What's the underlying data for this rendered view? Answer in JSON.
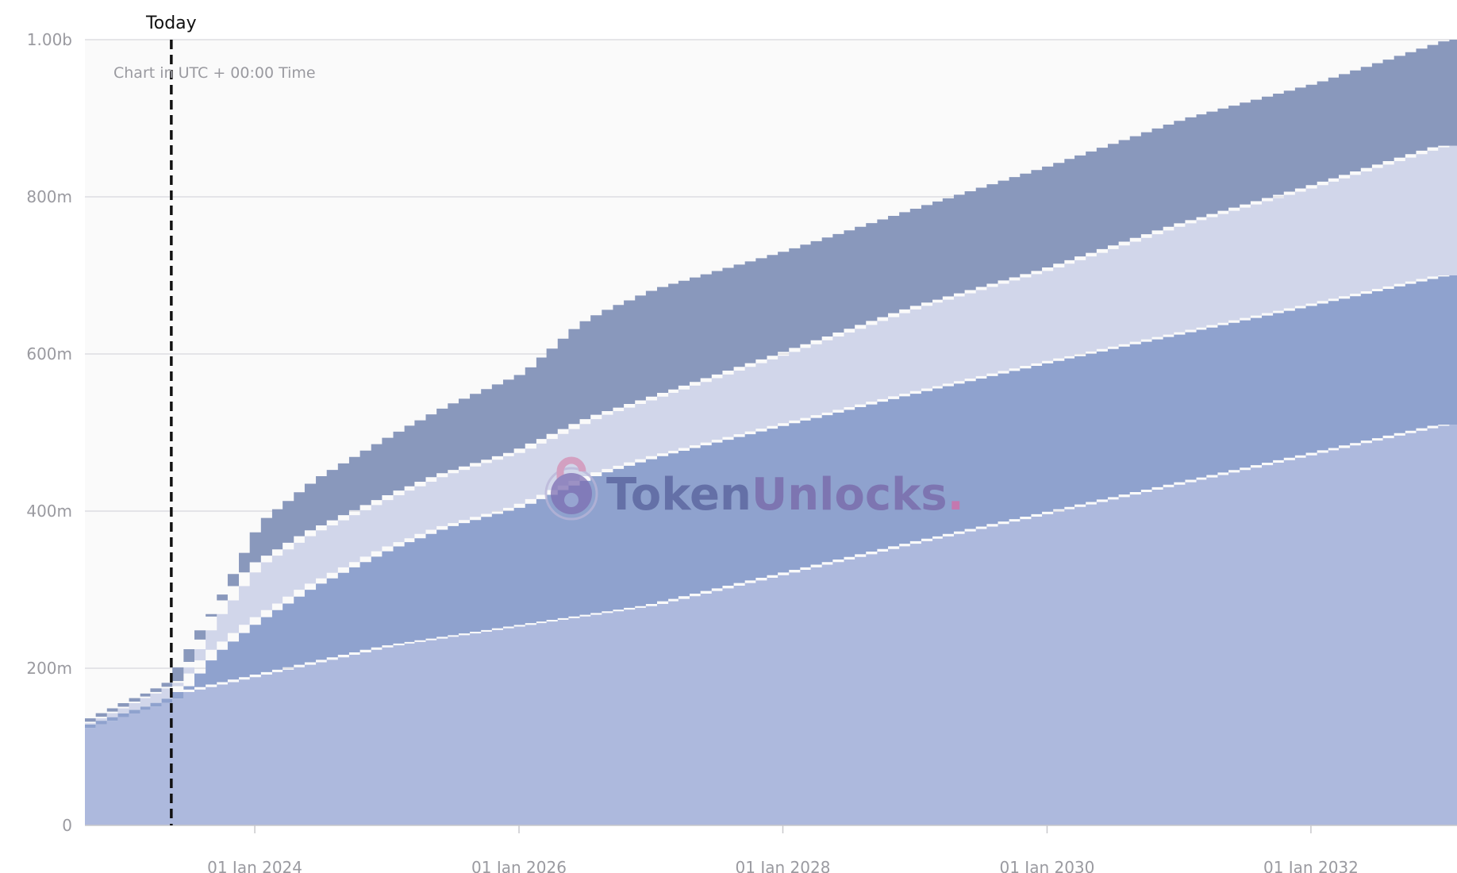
{
  "chart_data": {
    "type": "area",
    "stacked": true,
    "stepped": true,
    "note": "Chart in UTC + 00:00 Time",
    "today_label": "Today",
    "today_date": "2023-05-15",
    "xlim": [
      "2022-09-18",
      "2033-04-15"
    ],
    "ylim": [
      0,
      1000000000
    ],
    "yticks": [
      {
        "value": 0,
        "label": "0"
      },
      {
        "value": 200000000,
        "label": "200m"
      },
      {
        "value": 400000000,
        "label": "400m"
      },
      {
        "value": 600000000,
        "label": "600m"
      },
      {
        "value": 800000000,
        "label": "800m"
      },
      {
        "value": 1000000000,
        "label": "1.00b"
      }
    ],
    "xticks": [
      {
        "value": "2024-01-01",
        "label": "01 Jan 2024"
      },
      {
        "value": "2026-01-01",
        "label": "01 Jan 2026"
      },
      {
        "value": "2028-01-01",
        "label": "01 Jan 2028"
      },
      {
        "value": "2030-01-01",
        "label": "01 Jan 2030"
      },
      {
        "value": "2032-01-01",
        "label": "01 Jan 2032"
      }
    ],
    "grid": true,
    "watermark": {
      "part1": "Token",
      "part2": "Unlocks",
      "dot": "."
    },
    "series": [
      {
        "color": "#adb9dd",
        "points": [
          [
            "2022-09-18",
            124
          ],
          [
            "2023-05-15",
            160
          ],
          [
            "2023-06-01",
            168
          ],
          [
            "2025-01-01",
            228
          ],
          [
            "2027-01-01",
            280
          ],
          [
            "2029-01-01",
            360
          ],
          [
            "2031-01-01",
            435
          ],
          [
            "2033-01-01",
            510
          ],
          [
            "2033-04-15",
            510
          ]
        ]
      },
      {
        "color": "#8fa2ce",
        "points": [
          [
            "2022-09-18",
            0
          ],
          [
            "2023-05-15",
            0
          ],
          [
            "2023-06-01",
            0
          ],
          [
            "2023-09-01",
            40
          ],
          [
            "2024-01-01",
            70
          ],
          [
            "2024-06-01",
            98
          ],
          [
            "2025-01-01",
            124
          ],
          [
            "2025-06-01",
            140
          ],
          [
            "2026-01-01",
            152
          ],
          [
            "2026-08-01",
            178
          ],
          [
            "2027-01-01",
            188
          ],
          [
            "2028-01-01",
            190
          ],
          [
            "2030-01-01",
            192
          ],
          [
            "2032-01-01",
            190
          ],
          [
            "2033-01-01",
            190
          ],
          [
            "2033-04-15",
            190
          ]
        ]
      },
      {
        "color": "#d1d6ea",
        "points": [
          [
            "2022-09-18",
            6
          ],
          [
            "2023-05-15",
            20
          ],
          [
            "2023-06-01",
            20
          ],
          [
            "2024-01-01",
            70
          ],
          [
            "2024-06-01",
            68
          ],
          [
            "2025-01-01",
            65
          ],
          [
            "2026-01-01",
            70
          ],
          [
            "2027-01-01",
            75
          ],
          [
            "2028-01-01",
            90
          ],
          [
            "2029-01-01",
            108
          ],
          [
            "2030-01-01",
            118
          ],
          [
            "2031-01-01",
            138
          ],
          [
            "2032-01-01",
            150
          ],
          [
            "2033-01-01",
            165
          ],
          [
            "2033-04-15",
            165
          ]
        ]
      },
      {
        "color": "#8998bc",
        "points": [
          [
            "2022-09-18",
            2
          ],
          [
            "2023-05-15",
            2
          ],
          [
            "2023-06-01",
            4
          ],
          [
            "2023-09-01",
            20
          ],
          [
            "2024-01-01",
            55
          ],
          [
            "2024-06-01",
            68
          ],
          [
            "2025-01-01",
            80
          ],
          [
            "2025-06-01",
            88
          ],
          [
            "2026-01-01",
            100
          ],
          [
            "2026-06-01",
            130
          ],
          [
            "2027-01-01",
            140
          ],
          [
            "2028-01-01",
            132
          ],
          [
            "2029-01-01",
            128
          ],
          [
            "2030-01-01",
            133
          ],
          [
            "2031-01-01",
            135
          ],
          [
            "2032-01-01",
            132
          ],
          [
            "2033-01-01",
            135
          ],
          [
            "2033-04-15",
            135
          ]
        ]
      }
    ]
  }
}
